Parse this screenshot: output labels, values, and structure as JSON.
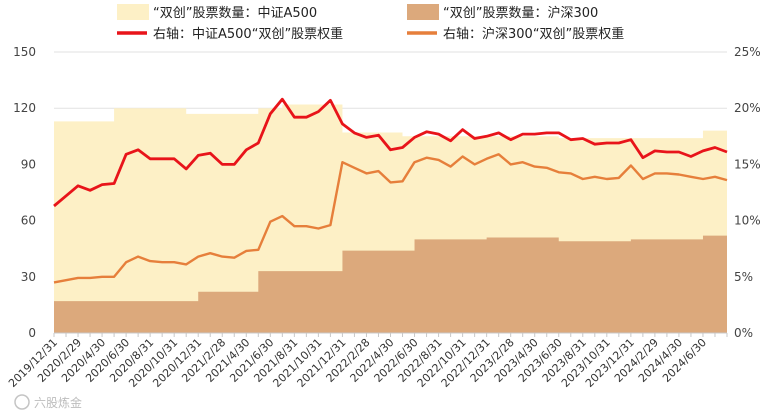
{
  "chart_data": {
    "type": "area",
    "x": [
      "2019/12/31",
      "2020/1/31",
      "2020/2/29",
      "2020/3/31",
      "2020/4/30",
      "2020/5/31",
      "2020/6/30",
      "2020/7/31",
      "2020/8/31",
      "2020/9/30",
      "2020/10/31",
      "2020/11/30",
      "2020/12/31",
      "2021/1/31",
      "2021/2/28",
      "2021/3/31",
      "2021/4/30",
      "2021/5/31",
      "2021/6/30",
      "2021/7/31",
      "2021/8/31",
      "2021/9/30",
      "2021/10/31",
      "2021/11/30",
      "2021/12/31",
      "2022/1/31",
      "2022/2/28",
      "2022/3/31",
      "2022/4/30",
      "2022/5/31",
      "2022/6/30",
      "2022/7/31",
      "2022/8/31",
      "2022/9/30",
      "2022/10/31",
      "2022/11/30",
      "2022/12/31",
      "2023/1/31",
      "2023/2/28",
      "2023/3/31",
      "2023/4/30",
      "2023/5/31",
      "2023/6/30",
      "2023/7/31",
      "2023/8/31",
      "2023/9/30",
      "2023/10/31",
      "2023/11/30",
      "2023/12/31",
      "2024/1/31",
      "2024/2/29",
      "2024/3/31",
      "2024/4/30",
      "2024/5/31",
      "2024/6/30",
      "2024/7/31",
      "2024/8/31"
    ],
    "x_tick_labels": [
      "2019/12/31",
      "2020/2/29",
      "2020/4/30",
      "2020/6/30",
      "2020/8/31",
      "2020/10/31",
      "2020/12/31",
      "2021/2/28",
      "2021/4/30",
      "2021/6/30",
      "2021/8/31",
      "2021/10/31",
      "2021/12/31",
      "2022/2/28",
      "2022/4/30",
      "2022/6/30",
      "2022/8/31",
      "2022/10/31",
      "2022/12/31",
      "2023/2/28",
      "2023/4/30",
      "2023/6/30",
      "2023/8/31",
      "2023/10/31",
      "2023/12/31",
      "2024/2/29",
      "2024/4/30",
      "2024/6/30"
    ],
    "series": [
      {
        "name": "“双创”股票数量：中证A500",
        "axis": "left",
        "kind": "area",
        "values": [
          113,
          113,
          113,
          113,
          113,
          120,
          120,
          120,
          120,
          120,
          120,
          117,
          117,
          117,
          117,
          117,
          117,
          120,
          120,
          122,
          122,
          122,
          122,
          122,
          107,
          107,
          107,
          107,
          107,
          105,
          105,
          105,
          105,
          105,
          105,
          105,
          105,
          105,
          105,
          105,
          105,
          105,
          104,
          104,
          104,
          104,
          104,
          104,
          104,
          104,
          104,
          104,
          104,
          104,
          108,
          108,
          108
        ]
      },
      {
        "name": "“双创”股票数量：沪深300",
        "axis": "left",
        "kind": "area",
        "values": [
          17,
          17,
          17,
          17,
          17,
          17,
          17,
          17,
          17,
          17,
          17,
          17,
          22,
          22,
          22,
          22,
          22,
          33,
          33,
          33,
          33,
          33,
          33,
          33,
          44,
          44,
          44,
          44,
          44,
          44,
          50,
          50,
          50,
          50,
          50,
          50,
          51,
          51,
          51,
          51,
          51,
          51,
          49,
          49,
          49,
          49,
          49,
          49,
          50,
          50,
          50,
          50,
          50,
          50,
          52,
          52,
          52
        ]
      },
      {
        "name": "右轴：中证A500“双创”股票权重",
        "axis": "right",
        "kind": "line",
        "values": [
          11.3,
          12.2,
          13.1,
          12.7,
          13.2,
          13.3,
          15.9,
          16.3,
          15.5,
          15.5,
          15.5,
          14.6,
          15.8,
          16.0,
          15.0,
          15.0,
          16.3,
          16.9,
          19.5,
          20.8,
          19.2,
          19.2,
          19.7,
          20.7,
          18.6,
          17.8,
          17.4,
          17.6,
          16.3,
          16.5,
          17.4,
          17.9,
          17.7,
          17.1,
          18.1,
          17.3,
          17.5,
          17.8,
          17.2,
          17.7,
          17.7,
          17.8,
          17.8,
          17.2,
          17.3,
          16.8,
          16.9,
          16.9,
          17.2,
          15.6,
          16.2,
          16.1,
          16.1,
          15.7,
          16.2,
          16.5,
          16.1
        ]
      },
      {
        "name": "右轴：沪深300“双创”股票权重",
        "axis": "right",
        "kind": "line",
        "values": [
          4.5,
          4.7,
          4.9,
          4.9,
          5.0,
          5.0,
          6.3,
          6.8,
          6.4,
          6.3,
          6.3,
          6.1,
          6.8,
          7.1,
          6.8,
          6.7,
          7.3,
          7.4,
          9.9,
          10.4,
          9.5,
          9.5,
          9.3,
          9.6,
          15.2,
          14.7,
          14.2,
          14.4,
          13.4,
          13.5,
          15.2,
          15.6,
          15.4,
          14.8,
          15.7,
          15.0,
          15.5,
          15.9,
          15.0,
          15.2,
          14.8,
          14.7,
          14.3,
          14.2,
          13.7,
          13.9,
          13.7,
          13.8,
          14.9,
          13.7,
          14.2,
          14.2,
          14.1,
          13.9,
          13.7,
          13.9,
          13.6
        ]
      }
    ],
    "ylim_left": [
      0,
      150
    ],
    "yticks_left": [
      "0",
      "30",
      "60",
      "90",
      "120",
      "150"
    ],
    "ylim_right": [
      0,
      25
    ],
    "yticks_right": [
      "0%",
      "5%",
      "10%",
      "15%",
      "20%",
      "25%"
    ],
    "title": "",
    "xlabel": "",
    "ylabel": "",
    "grid": true,
    "legend_position": "top",
    "colors": {
      "a500_area": "#fdf0c6",
      "hs300_area": "#dca97c",
      "a500_line": "#e8141a",
      "hs300_line": "#e67f3b",
      "grid": "#e2e2e2",
      "axis": "#c8c8c8"
    }
  },
  "watermark": "六股炼金"
}
